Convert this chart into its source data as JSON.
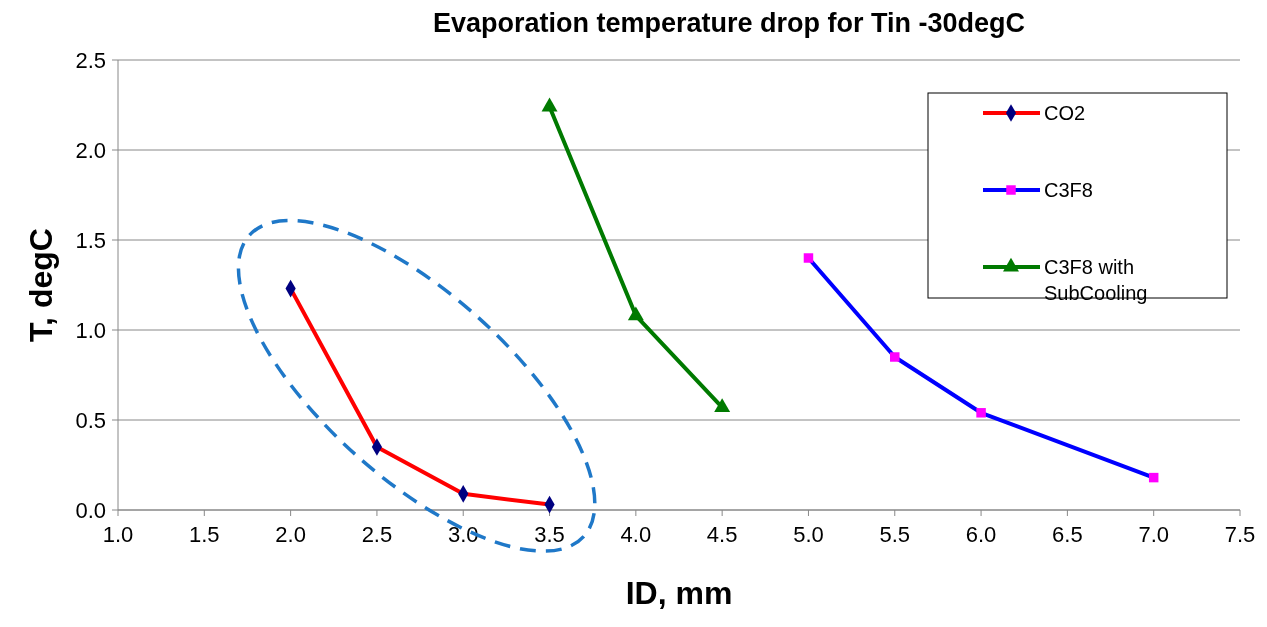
{
  "chart_data": {
    "type": "line",
    "title": "Evaporation temperature drop for Tin -30degC",
    "xlabel": "ID, mm",
    "ylabel": "T, degC",
    "xlim": [
      1.0,
      7.5
    ],
    "xticks": [
      {
        "value": 1,
        "label": "1.0"
      },
      {
        "value": 1.5,
        "label": "1.5"
      },
      {
        "value": 2,
        "label": "2.0"
      },
      {
        "value": 2.5,
        "label": "2.5"
      },
      {
        "value": 3,
        "label": "3.0"
      },
      {
        "value": 3.5,
        "label": "3.5"
      },
      {
        "value": 4,
        "label": "4.0"
      },
      {
        "value": 4.5,
        "label": "4.5"
      },
      {
        "value": 5,
        "label": "5.0"
      },
      {
        "value": 5.5,
        "label": "5.5"
      },
      {
        "value": 6,
        "label": "6.0"
      },
      {
        "value": 6.5,
        "label": "6.5"
      },
      {
        "value": 7,
        "label": "7.0"
      },
      {
        "value": 7.5,
        "label": "7.5"
      }
    ],
    "ylim": [
      0,
      2.5
    ],
    "yticks": [
      {
        "value": 0,
        "label": "0.0"
      },
      {
        "value": 0.5,
        "label": "0.5"
      },
      {
        "value": 1,
        "label": "1.0"
      },
      {
        "value": 1.5,
        "label": "1.5"
      },
      {
        "value": 2,
        "label": "2.0"
      },
      {
        "value": 2.5,
        "label": "2.5"
      }
    ],
    "grid": "y",
    "legend": "top right",
    "line_style": "solid",
    "series": [
      {
        "name": "CO2",
        "color": "#ff0000",
        "marker": "diamond",
        "colors": [
          "#000080",
          "#000080",
          "#000080",
          "#000080"
        ],
        "x": [
          2.0,
          2.5,
          3.0,
          3.5
        ],
        "values": [
          1.23,
          0.35,
          0.09,
          0.03
        ]
      },
      {
        "name": "C3F8",
        "color": "#0000ff",
        "marker": "square",
        "colors": [
          "#ff00ff",
          "#ff00ff",
          "#ff00ff",
          "#ff00ff"
        ],
        "x": [
          5.0,
          5.5,
          6.0,
          7.0
        ],
        "values": [
          1.4,
          0.85,
          0.54,
          0.18
        ]
      },
      {
        "name": "C3F8 with SubCooling",
        "color": "#007a00",
        "marker": "triangle",
        "colors": [
          "#007a00",
          "#007a00",
          "#007a00"
        ],
        "x": [
          3.5,
          4.0,
          4.5
        ],
        "values": [
          2.24,
          1.08,
          0.57
        ]
      }
    ]
  }
}
